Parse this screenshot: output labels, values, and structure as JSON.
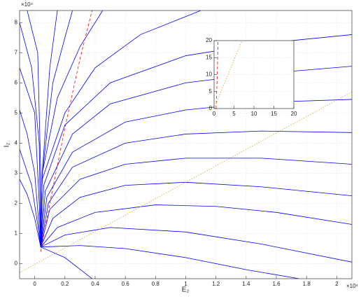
{
  "chart_data": [
    {
      "type": "line",
      "xlabel": "E₂",
      "ylabel": "I₂",
      "x_exponent": "×10⁴",
      "y_exponent": "×10⁴",
      "xlim": [
        -0.1,
        2.1
      ],
      "ylim": [
        -0.5,
        8.4
      ],
      "xticks": [
        0,
        0.2,
        0.4,
        0.6,
        0.8,
        1,
        1.2,
        1.4,
        1.6,
        1.8,
        2
      ],
      "yticks": [
        0,
        1,
        2,
        3,
        4,
        5,
        6,
        7,
        8
      ],
      "grid": true,
      "series": [
        {
          "color": "#0000ff",
          "linestyle": "solid",
          "x": [
            0.04,
            0.2,
            0.38
          ],
          "values": [
            0.55,
            0.2,
            -0.5
          ]
        },
        {
          "color": "#0000ff",
          "linestyle": "solid",
          "x": [
            0.04,
            0.3,
            0.6,
            1.0,
            1.4,
            1.75
          ],
          "values": [
            0.55,
            0.6,
            0.5,
            0.2,
            -0.2,
            -0.5
          ]
        },
        {
          "color": "#0000ff",
          "linestyle": "solid",
          "x": [
            0.04,
            0.2,
            0.5,
            1.0,
            1.5,
            2.1
          ],
          "values": [
            0.55,
            0.95,
            1.2,
            1.05,
            0.65,
            0.05
          ]
        },
        {
          "color": "#0000ff",
          "linestyle": "solid",
          "x": [
            0.04,
            0.15,
            0.4,
            0.8,
            1.2,
            1.6,
            2.1
          ],
          "values": [
            0.55,
            1.2,
            1.7,
            1.95,
            1.9,
            1.7,
            1.3
          ]
        },
        {
          "color": "#0000ff",
          "linestyle": "solid",
          "x": [
            0.04,
            0.12,
            0.3,
            0.6,
            1.0,
            1.5,
            2.1
          ],
          "values": [
            0.55,
            1.5,
            2.2,
            2.6,
            2.7,
            2.55,
            2.25
          ]
        },
        {
          "color": "#0000ff",
          "linestyle": "solid",
          "x": [
            0.04,
            0.1,
            0.3,
            0.6,
            1.0,
            1.5,
            2.1
          ],
          "values": [
            0.55,
            1.8,
            2.8,
            3.3,
            3.5,
            3.5,
            3.3
          ]
        },
        {
          "color": "#0000ff",
          "linestyle": "solid",
          "x": [
            0.04,
            0.09,
            0.25,
            0.6,
            1.0,
            1.5,
            2.1
          ],
          "values": [
            0.55,
            2.0,
            3.2,
            4.0,
            4.3,
            4.4,
            4.35
          ]
        },
        {
          "color": "#0000ff",
          "linestyle": "solid",
          "x": [
            0.04,
            0.08,
            0.25,
            0.6,
            1.0,
            1.5,
            2.1
          ],
          "values": [
            0.55,
            2.2,
            3.7,
            4.7,
            5.1,
            5.35,
            5.45
          ]
        },
        {
          "color": "#0000ff",
          "linestyle": "solid",
          "x": [
            0.04,
            0.07,
            0.25,
            0.5,
            1.0,
            1.5,
            2.1
          ],
          "values": [
            0.55,
            2.4,
            4.3,
            5.3,
            6.0,
            6.3,
            6.55
          ]
        },
        {
          "color": "#0000ff",
          "linestyle": "solid",
          "x": [
            0.04,
            0.06,
            0.2,
            0.5,
            1.0,
            1.5,
            2.1
          ],
          "values": [
            0.55,
            2.6,
            4.6,
            6.0,
            6.9,
            7.3,
            7.6
          ]
        },
        {
          "color": "#0000ff",
          "linestyle": "solid",
          "x": [
            0.04,
            0.05,
            0.2,
            0.4,
            0.7,
            1.1
          ],
          "values": [
            0.55,
            2.8,
            5.0,
            6.5,
            7.6,
            8.4
          ]
        },
        {
          "color": "#0000ff",
          "linestyle": "solid",
          "x": [
            0.04,
            0.05,
            0.15,
            0.3,
            0.45
          ],
          "values": [
            0.55,
            3,
            5.5,
            7.2,
            8.4
          ]
        },
        {
          "color": "#0000ff",
          "linestyle": "solid",
          "x": [
            0.04,
            0.05,
            0.12,
            0.2,
            0.25
          ],
          "values": [
            0.55,
            3,
            6,
            7.5,
            8.4
          ]
        },
        {
          "color": "#0000ff",
          "linestyle": "solid",
          "x": [
            0.04,
            0.05,
            0.1,
            0.15
          ],
          "values": [
            0.55,
            3,
            6.5,
            8.4
          ]
        },
        {
          "color": "#0000ff",
          "linestyle": "solid",
          "x": [
            -0.1,
            -0.05,
            0,
            0.04
          ],
          "values": [
            2.8,
            2.3,
            1.5,
            0.55
          ]
        },
        {
          "color": "#0000ff",
          "linestyle": "solid",
          "x": [
            -0.1,
            -0.02,
            0.02,
            0.04
          ],
          "values": [
            3.8,
            2.6,
            1.3,
            0.55
          ]
        },
        {
          "color": "#0000ff",
          "linestyle": "solid",
          "x": [
            -0.1,
            -0.05,
            0,
            0.04
          ],
          "values": [
            5.1,
            4.3,
            3,
            0.55
          ]
        },
        {
          "color": "#0000ff",
          "linestyle": "solid",
          "x": [
            -0.1,
            0,
            0.03,
            0.04
          ],
          "values": [
            6.5,
            5,
            2,
            0.55
          ]
        },
        {
          "color": "#0000ff",
          "linestyle": "solid",
          "x": [
            -0.1,
            -0.02,
            0.03,
            0.04
          ],
          "values": [
            8,
            6.5,
            4,
            0.55
          ]
        },
        {
          "color": "#0000ff",
          "linestyle": "solid",
          "x": [
            -0.05,
            0.02,
            0.04,
            0.04
          ],
          "values": [
            8.4,
            7,
            3,
            0.55
          ]
        },
        {
          "color": "#ff0000",
          "linestyle": "dashed",
          "x": [
            0.04,
            0.1,
            0.2,
            0.3,
            0.38
          ],
          "values": [
            0.4,
            2,
            4.5,
            6.8,
            8.4
          ]
        },
        {
          "color": "#e0a030",
          "linestyle": "dotted",
          "x": [
            -0.1,
            2.1
          ],
          "values": [
            -0.3,
            5.7
          ]
        }
      ]
    },
    {
      "type": "line",
      "xlim": [
        0,
        20
      ],
      "ylim": [
        0,
        20
      ],
      "xticks": [
        0,
        5,
        10,
        15,
        20
      ],
      "yticks": [
        0,
        5,
        10,
        15,
        20
      ],
      "grid": true,
      "series": [
        {
          "color": "#ff0000",
          "linestyle": "dashed",
          "x": [
            0.5,
            0.8,
            1.0
          ],
          "values": [
            0,
            10,
            20
          ]
        },
        {
          "color": "#e0a030",
          "linestyle": "dotted",
          "x": [
            0,
            7
          ],
          "values": [
            0,
            20
          ]
        }
      ]
    }
  ]
}
